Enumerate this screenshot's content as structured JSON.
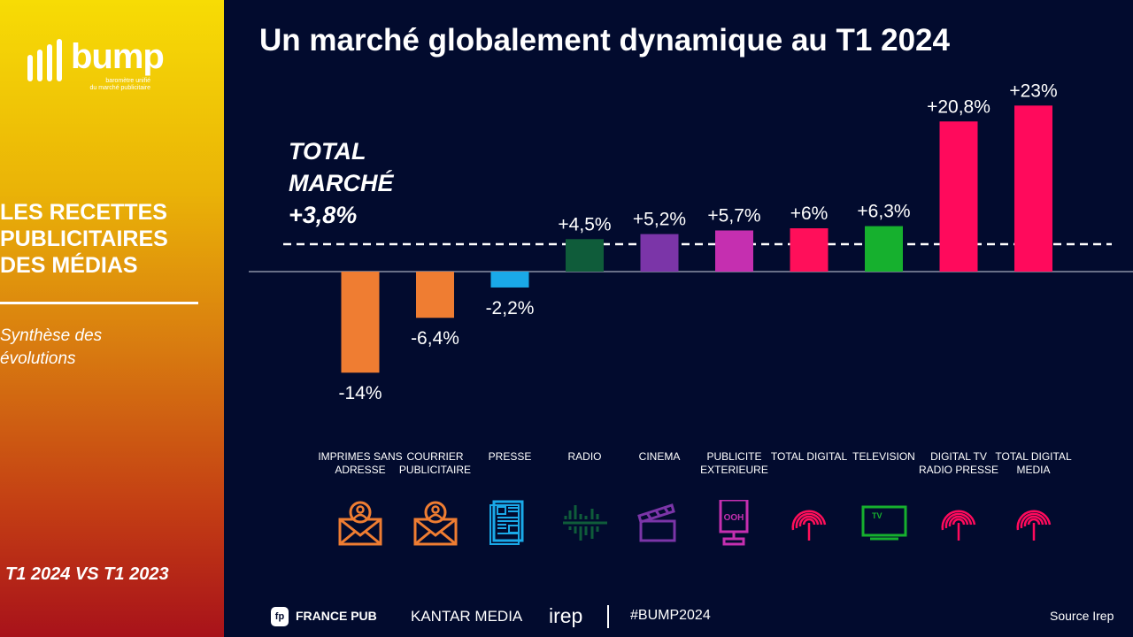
{
  "sidebar": {
    "logo_word": "bump",
    "logo_sub_1": "baromètre unifié",
    "logo_sub_2": "du marché publicitaire",
    "title_1": "LES RECETTES",
    "title_2": "PUBLICITAIRES",
    "title_3": "DES MÉDIAS",
    "subtitle_1": "Synthèse des",
    "subtitle_2": "évolutions",
    "period": "T1 2024 VS T1 2023"
  },
  "header": {
    "title": "Un marché globalement dynamique au T1 2024"
  },
  "total": {
    "line1": "TOTAL",
    "line2": "MARCHÉ",
    "value_label": "+3,8%"
  },
  "chart_data": {
    "type": "bar",
    "unit": "%",
    "reference_line": {
      "label": "TOTAL MARCHÉ",
      "value": 3.8
    },
    "categories": [
      "IMPRIMES SANS ADRESSE",
      "COURRIER PUBLICITAIRE",
      "PRESSE",
      "RADIO",
      "CINEMA",
      "PUBLICITE EXTERIEURE",
      "TOTAL DIGITAL",
      "TELEVISION",
      "DIGITAL TV RADIO PRESSE",
      "TOTAL DIGITAL MEDIA"
    ],
    "values": [
      -14,
      -6.4,
      -2.2,
      4.5,
      5.2,
      5.7,
      6,
      6.3,
      20.8,
      23
    ],
    "data_labels": [
      "-14%",
      "-6,4%",
      "-2,2%",
      "+4,5%",
      "+5,2%",
      "+5,7%",
      "+6%",
      "+6,3%",
      "+20,8%",
      "+23%"
    ],
    "colors": [
      "#ef7d32",
      "#ef7d32",
      "#1aa9e8",
      "#0f5c3a",
      "#7b35a8",
      "#c52fb0",
      "#ff0f5a",
      "#16b02e",
      "#ff0a5c",
      "#ff0a5c"
    ],
    "icons": [
      "mail-person-icon",
      "mail-person-icon",
      "newspaper-icon",
      "sound-wave-icon",
      "clapperboard-icon",
      "billboard-ooh-icon",
      "fingerprint-icon",
      "tv-icon",
      "fingerprint-icon",
      "fingerprint-icon"
    ],
    "ooh_text": "OOH",
    "tv_text": "TV"
  },
  "footer": {
    "francepub": "FRANCE PUB",
    "kantar": "KANTAR MEDIA",
    "irep": "irep",
    "hashtag": "#BUMP2024",
    "source": "Source Irep"
  }
}
